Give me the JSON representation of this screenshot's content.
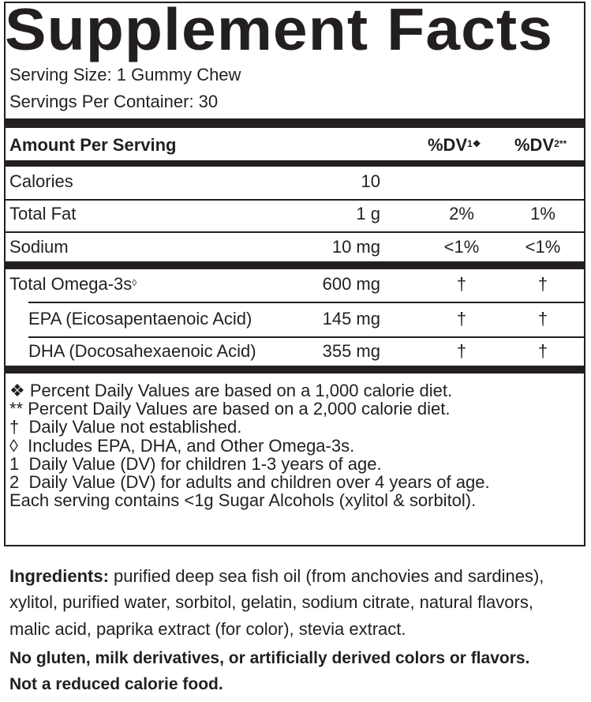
{
  "title": "Supplement Facts",
  "serving_size": "Serving Size: 1 Gummy Chew",
  "servings_per_container": "Servings Per Container: 30",
  "header": {
    "amount": "Amount Per Serving",
    "dv1": "%DV",
    "dv1_sup": "1❖",
    "dv2": "%DV",
    "dv2_sup": "2**"
  },
  "rows": [
    {
      "name": "Calories",
      "amount": "10",
      "dv1": "",
      "dv2": ""
    },
    {
      "name": "Total Fat",
      "amount": "1 g",
      "dv1": "2%",
      "dv2": "1%"
    },
    {
      "name": "Sodium",
      "amount": "10 mg",
      "dv1": "<1%",
      "dv2": "<1%"
    },
    {
      "name": "Total Omega-3s",
      "sup": "◊",
      "amount": "600 mg",
      "dv1": "†",
      "dv2": "†"
    },
    {
      "name": "EPA (Eicosapentaenoic Acid)",
      "amount": "145 mg",
      "dv1": "†",
      "dv2": "†"
    },
    {
      "name": "DHA (Docosahexaenoic Acid)",
      "amount": "355 mg",
      "dv1": "†",
      "dv2": "†"
    }
  ],
  "footnotes": [
    "❖ Percent Daily Values are based on a 1,000 calorie diet.",
    "** Percent Daily Values are based on a 2,000 calorie diet.",
    "†  Daily Value not established.",
    "◊  Includes EPA, DHA, and Other Omega-3s.",
    "1  Daily Value (DV) for children 1-3 years of age.",
    "2  Daily Value (DV) for adults and children over 4 years of age.",
    "Each serving contains <1g Sugar Alcohols (xylitol & sorbitol)."
  ],
  "ingredients": {
    "label": "Ingredients:",
    "lines": [
      " purified deep sea fish oil (from anchovies and sardines),",
      "xylitol, purified water, sorbitol, gelatin, sodium citrate, natural flavors,",
      "malic acid, paprika extract (for color), stevia extract."
    ]
  },
  "notes": [
    "No gluten, milk derivatives, or artificially derived colors or flavors.",
    "Not a reduced calorie food."
  ]
}
